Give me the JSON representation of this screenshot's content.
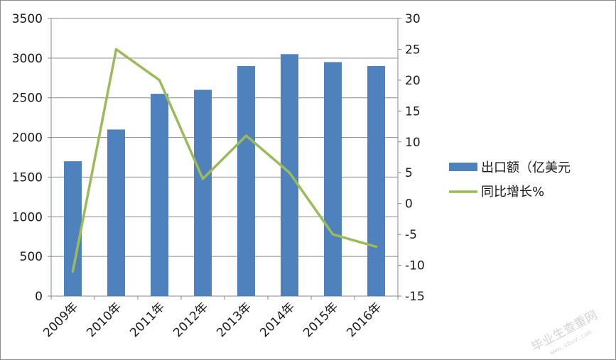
{
  "chart_data": {
    "type": "bar+line",
    "categories": [
      "2009年",
      "2010年",
      "2011年",
      "2012年",
      "2013年",
      "2014年",
      "2015年",
      "2016年"
    ],
    "series": [
      {
        "name": "出口额（亿美元",
        "type": "bar",
        "axis": "left",
        "color": "#4f81bd",
        "values": [
          1700,
          2100,
          2550,
          2600,
          2900,
          3050,
          2950,
          2900
        ]
      },
      {
        "name": "同比增长%",
        "type": "line",
        "axis": "right",
        "color": "#9bbb59",
        "values": [
          -11,
          25,
          20,
          4,
          11,
          5,
          -5,
          -7
        ]
      }
    ],
    "ylim_left": [
      0,
      3500
    ],
    "yticks_left": [
      0,
      500,
      1000,
      1500,
      2000,
      2500,
      3000,
      3500
    ],
    "ylim_right": [
      -15,
      30
    ],
    "yticks_right": [
      -15,
      -10,
      -5,
      0,
      5,
      10,
      15,
      20,
      25,
      30
    ],
    "grid": true,
    "legend_position": "right"
  },
  "watermark": {
    "main": "毕业生查重网",
    "url": "www.sbvv.com"
  }
}
